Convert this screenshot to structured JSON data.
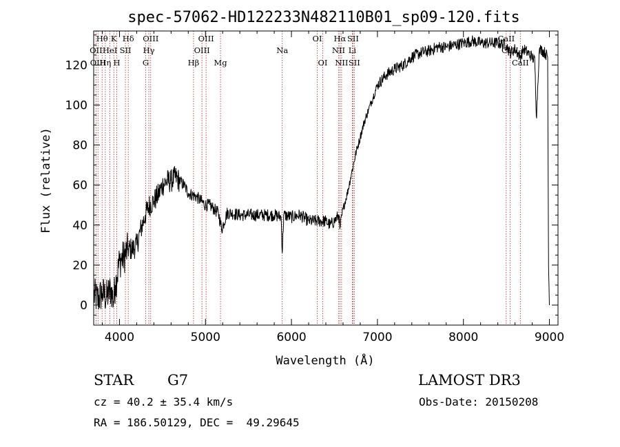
{
  "chart_data": {
    "type": "line",
    "title": "spec-57062-HD122233N482110B01_sp09-120.fits",
    "xlabel": "Wavelength (Å)",
    "ylabel": "Flux (relative)",
    "xlim": [
      3700,
      9100
    ],
    "ylim": [
      -10,
      137
    ],
    "x_ticks": [
      4000,
      5000,
      6000,
      7000,
      8000,
      9000
    ],
    "y_ticks": [
      0,
      20,
      40,
      60,
      80,
      100,
      120
    ],
    "x_tick_labels": [
      "4000",
      "5000",
      "6000",
      "7000",
      "8000",
      "9000"
    ],
    "y_tick_labels": [
      "0",
      "20",
      "40",
      "60",
      "80",
      "100",
      "120"
    ],
    "series": [
      {
        "name": "flux",
        "x": [
          3700,
          3750,
          3800,
          3850,
          3900,
          3930,
          3950,
          3970,
          4000,
          4050,
          4100,
          4150,
          4200,
          4250,
          4300,
          4350,
          4400,
          4450,
          4500,
          4550,
          4600,
          4650,
          4700,
          4750,
          4800,
          4850,
          4900,
          4950,
          5000,
          5050,
          5100,
          5150,
          5190,
          5250,
          5300,
          5400,
          5500,
          5600,
          5700,
          5800,
          5880,
          5893,
          5910,
          6000,
          6100,
          6200,
          6300,
          6400,
          6450,
          6500,
          6550,
          6563,
          6600,
          6650,
          6700,
          6750,
          6800,
          6850,
          6900,
          6950,
          7000,
          7100,
          7200,
          7300,
          7400,
          7500,
          7600,
          7700,
          7800,
          7900,
          8000,
          8100,
          8200,
          8300,
          8400,
          8500,
          8540,
          8600,
          8662,
          8700,
          8750,
          8800,
          8830,
          8850,
          8880,
          8900,
          8950,
          8980,
          8990,
          9000
        ],
        "y": [
          5,
          3,
          6,
          4,
          8,
          2,
          10,
          14,
          22,
          24,
          28,
          28,
          30,
          38,
          45,
          50,
          52,
          55,
          60,
          62,
          62,
          64,
          62,
          60,
          56,
          55,
          54,
          52,
          50,
          50,
          48,
          46,
          38,
          46,
          46,
          45,
          45,
          45,
          45,
          45,
          44,
          26,
          45,
          44,
          45,
          42,
          42,
          42,
          40,
          42,
          45,
          38,
          48,
          56,
          66,
          76,
          84,
          92,
          98,
          104,
          110,
          115,
          118,
          120,
          124,
          126,
          127,
          129,
          129,
          130,
          131,
          132,
          131,
          131,
          131,
          130,
          126,
          128,
          124,
          128,
          126,
          124,
          122,
          94,
          126,
          128,
          126,
          124,
          20,
          0
        ]
      }
    ],
    "spectral_lines": [
      {
        "name": "Hθ",
        "x": 3798,
        "row": 0
      },
      {
        "name": "OII",
        "x": 3727,
        "row": 1
      },
      {
        "name": "OIII",
        "x": 3750,
        "row": 2
      },
      {
        "name": "Hη",
        "x": 3835,
        "row": 2
      },
      {
        "name": "HeI",
        "x": 3889,
        "row": 1
      },
      {
        "name": "K",
        "x": 3934,
        "row": 0
      },
      {
        "name": "SII",
        "x": 4069,
        "row": 1
      },
      {
        "name": "H",
        "x": 3969,
        "row": 2
      },
      {
        "name": "Hδ",
        "x": 4102,
        "row": 0
      },
      {
        "name": "OIII",
        "x": 4363,
        "row": 0
      },
      {
        "name": "Hγ",
        "x": 4341,
        "row": 1
      },
      {
        "name": "G",
        "x": 4305,
        "row": 2
      },
      {
        "name": "Hβ",
        "x": 4861,
        "row": 2
      },
      {
        "name": "OIII",
        "x": 5007,
        "row": 0
      },
      {
        "name": "OIII",
        "x": 4959,
        "row": 1
      },
      {
        "name": "Mg",
        "x": 5175,
        "row": 2
      },
      {
        "name": "Na",
        "x": 5893,
        "row": 1
      },
      {
        "name": "OI",
        "x": 6300,
        "row": 0
      },
      {
        "name": "OI",
        "x": 6364,
        "row": 2
      },
      {
        "name": "Hα",
        "x": 6563,
        "row": 0
      },
      {
        "name": "NII",
        "x": 6548,
        "row": 1
      },
      {
        "name": "NII",
        "x": 6583,
        "row": 2
      },
      {
        "name": "SII",
        "x": 6716,
        "row": 0
      },
      {
        "name": "Li",
        "x": 6708,
        "row": 1
      },
      {
        "name": "SII",
        "x": 6731,
        "row": 2
      },
      {
        "name": "CaII",
        "x": 8498,
        "row": 0
      },
      {
        "name": "CaII",
        "x": 8542,
        "row": 1
      },
      {
        "name": "CaII",
        "x": 8662,
        "row": 2
      }
    ]
  },
  "info": {
    "object_class": "STAR",
    "subclass": "G7",
    "survey": "LAMOST DR3",
    "redshift": "cz = 40.2 ± 35.4 km/s",
    "obs_date": "Obs-Date: 20150208",
    "coords": "RA = 186.50129, DEC =  49.29645"
  }
}
